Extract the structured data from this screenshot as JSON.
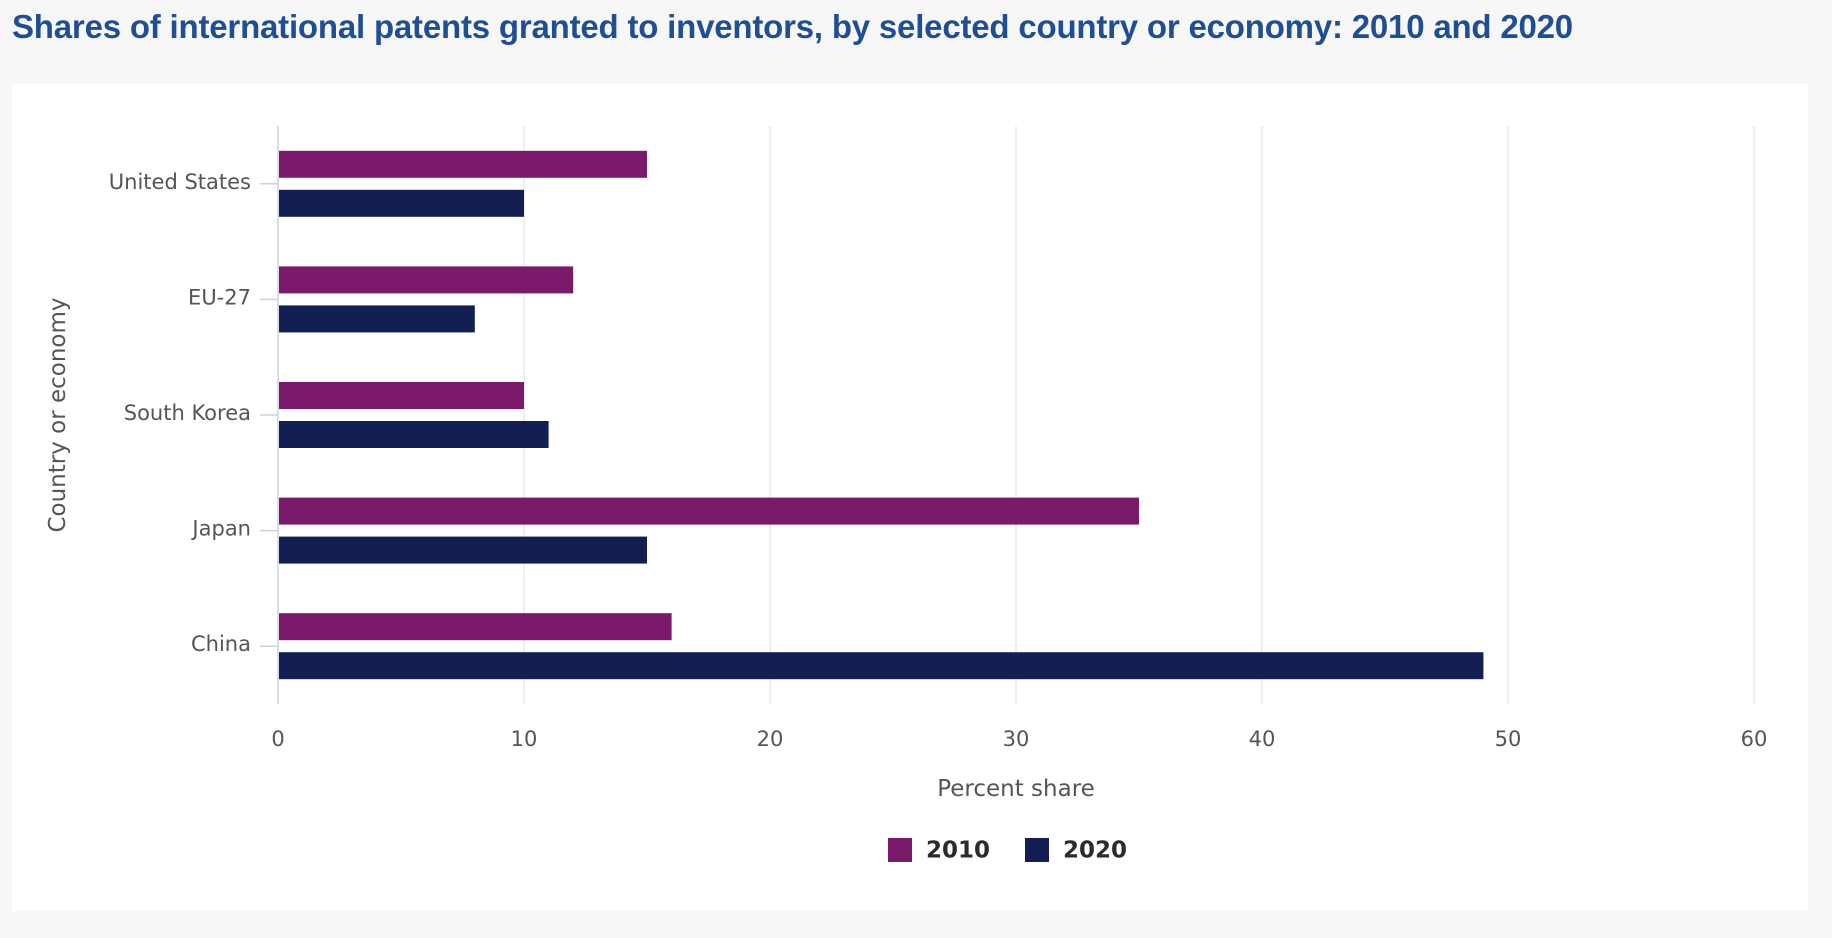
{
  "title": "Shares of international patents granted to inventors, by selected country or economy: 2010 and 2020",
  "colors": {
    "title": "#1f4e93",
    "grid": "#dfe3ea",
    "axis": "#c7d3e3",
    "text": "#555555"
  },
  "chart_data": {
    "type": "bar",
    "orientation": "horizontal",
    "title": "Shares of international patents granted to inventors, by selected country or economy: 2010 and 2020",
    "xlabel": "Percent share",
    "ylabel": "Country or economy",
    "categories": [
      "United States",
      "EU-27",
      "South Korea",
      "Japan",
      "China"
    ],
    "series": [
      {
        "name": "2010",
        "color": "#7b1a6b",
        "values": [
          15,
          12,
          10,
          35,
          16
        ]
      },
      {
        "name": "2020",
        "color": "#131e52",
        "values": [
          10,
          8,
          11,
          15,
          49
        ]
      }
    ],
    "xlim": [
      0,
      60
    ],
    "xticks": [
      "0",
      "10",
      "20",
      "30",
      "40",
      "50",
      "60"
    ],
    "grid": true,
    "legend": "bottom-center"
  }
}
